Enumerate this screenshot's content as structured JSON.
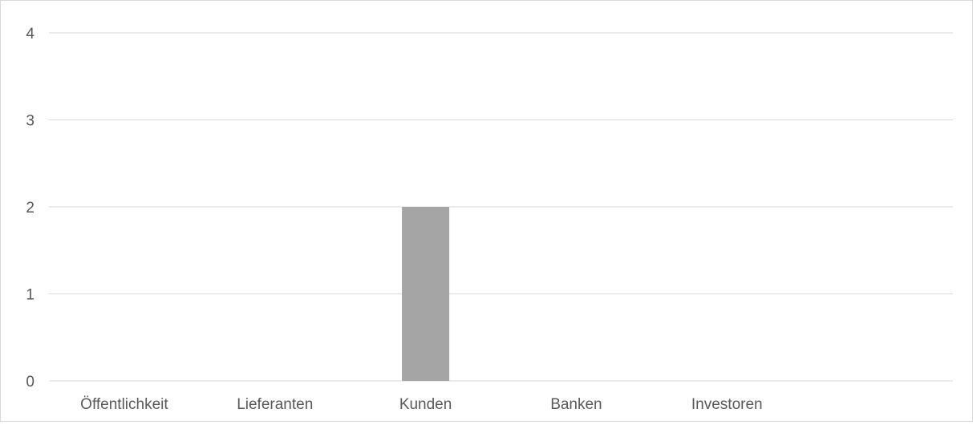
{
  "chart_data": {
    "type": "bar",
    "categories": [
      "Öffentlichkeit",
      "Lieferanten",
      "Kunden",
      "Banken",
      "Investoren",
      ""
    ],
    "values": [
      0,
      0,
      2,
      0,
      0,
      0
    ],
    "title": "",
    "xlabel": "",
    "ylabel": "",
    "ylim": [
      0,
      4
    ],
    "yticks": [
      "0",
      "1",
      "2",
      "3",
      "4"
    ],
    "grid": true,
    "legend": "none",
    "colors": {
      "bar": "#a5a5a5",
      "grid": "#d9d9d9",
      "text": "#595959"
    }
  }
}
